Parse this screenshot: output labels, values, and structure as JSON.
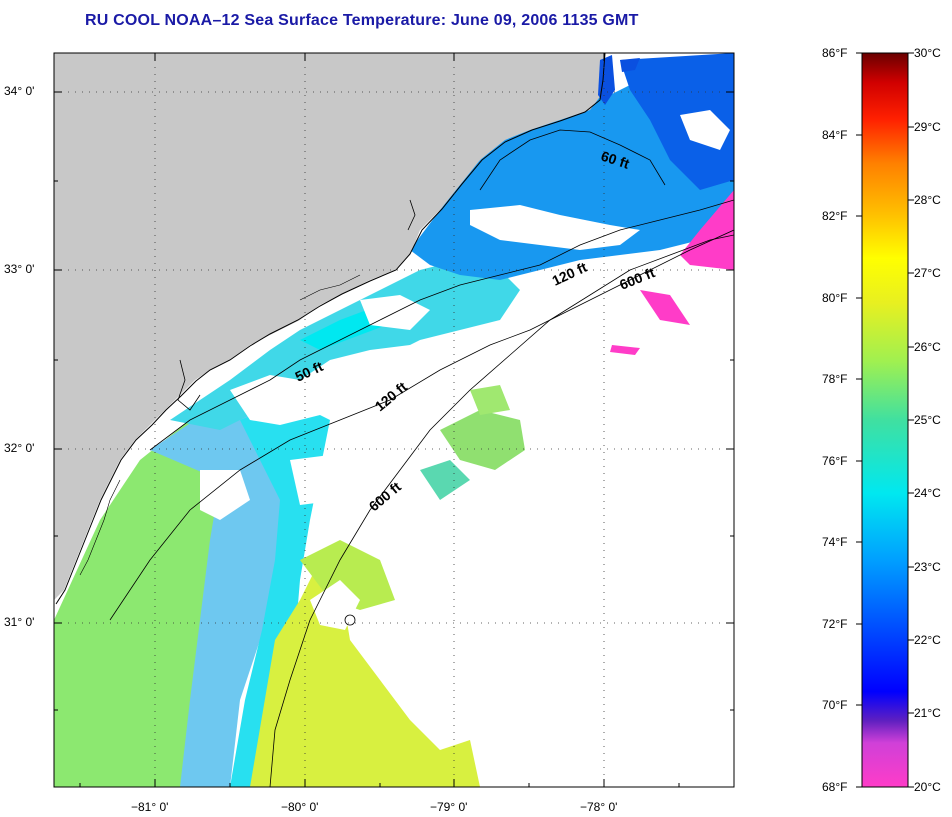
{
  "title": "RU COOL  NOAA–12  Sea Surface Temperature:  June 09, 2006 1135 GMT",
  "map": {
    "lat_ticks": [
      "34° 0'",
      "33° 0'",
      "32° 0'",
      "31° 0'"
    ],
    "lon_ticks": [
      "−81° 0'",
      "−80° 0'",
      "−79° 0'",
      "−78° 0'"
    ],
    "contours": [
      "60 ft",
      "120 ft",
      "600 ft",
      "50 ft",
      "120 ft",
      "600 ft"
    ],
    "land_color": "#c8c8c8",
    "cloud_color": "#ffffff"
  },
  "colorbar": {
    "fahrenheit": [
      "86°F",
      "84°F",
      "82°F",
      "80°F",
      "78°F",
      "76°F",
      "74°F",
      "72°F",
      "70°F",
      "68°F"
    ],
    "celsius": [
      "30°C",
      "29°C",
      "28°C",
      "27°C",
      "26°C",
      "25°C",
      "24°C",
      "23°C",
      "22°C",
      "21°C",
      "20°C"
    ],
    "colors": [
      "#ff3cc8",
      "#d040d8",
      "#6020c0",
      "#0000ff",
      "#0050ff",
      "#00a0ff",
      "#00e8f0",
      "#40e0a0",
      "#a0f050",
      "#e8f020",
      "#ffff00",
      "#ffc000",
      "#ff8000",
      "#ff3000",
      "#e00000",
      "#700000"
    ]
  }
}
